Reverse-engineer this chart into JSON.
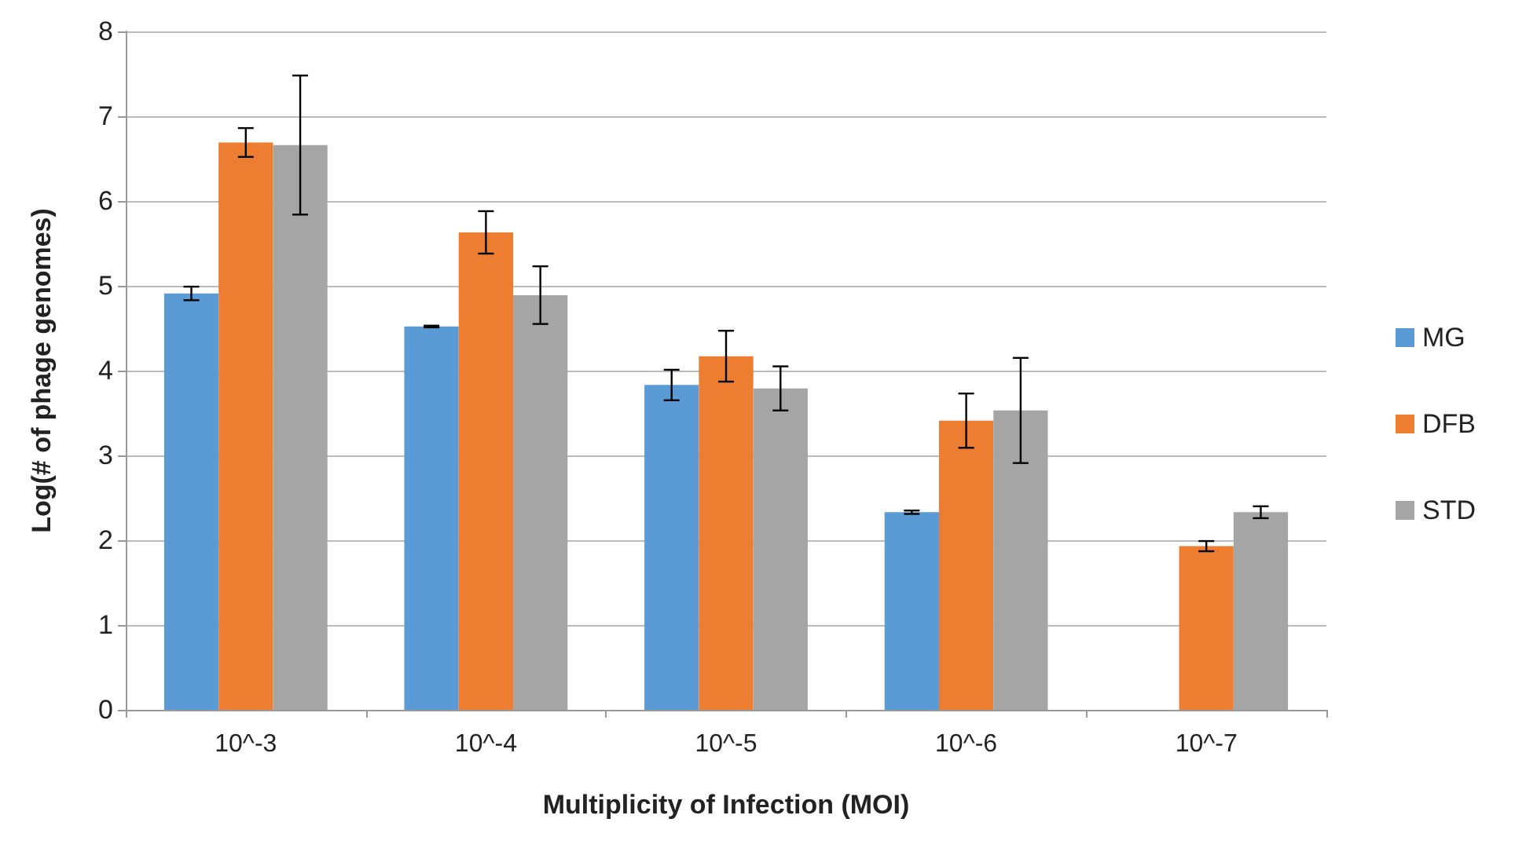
{
  "chart_data": {
    "type": "bar",
    "xlabel": "Multiplicity of Infection (MOI)",
    "ylabel": "Log(# of phage genomes)",
    "categories": [
      "10^-3",
      "10^-4",
      "10^-5",
      "10^-6",
      "10^-7"
    ],
    "series": [
      {
        "name": "MG",
        "color": "#5b9bd5",
        "values": [
          4.91,
          4.52,
          3.83,
          2.33,
          null
        ],
        "errors": [
          0.08,
          0.01,
          0.18,
          0.02,
          null
        ]
      },
      {
        "name": "DFB",
        "color": "#ed7d31",
        "values": [
          6.69,
          5.63,
          4.17,
          3.41,
          1.93
        ],
        "errors": [
          0.17,
          0.25,
          0.3,
          0.32,
          0.06
        ]
      },
      {
        "name": "STD",
        "color": "#a5a5a5",
        "values": [
          6.66,
          4.89,
          3.79,
          3.53,
          2.33
        ],
        "errors": [
          0.82,
          0.34,
          0.26,
          0.62,
          0.07
        ]
      }
    ],
    "ylim": [
      0,
      8
    ],
    "yticks": [
      0,
      1,
      2,
      3,
      4,
      5,
      6,
      7,
      8
    ],
    "grid": "y",
    "legend": "right"
  }
}
